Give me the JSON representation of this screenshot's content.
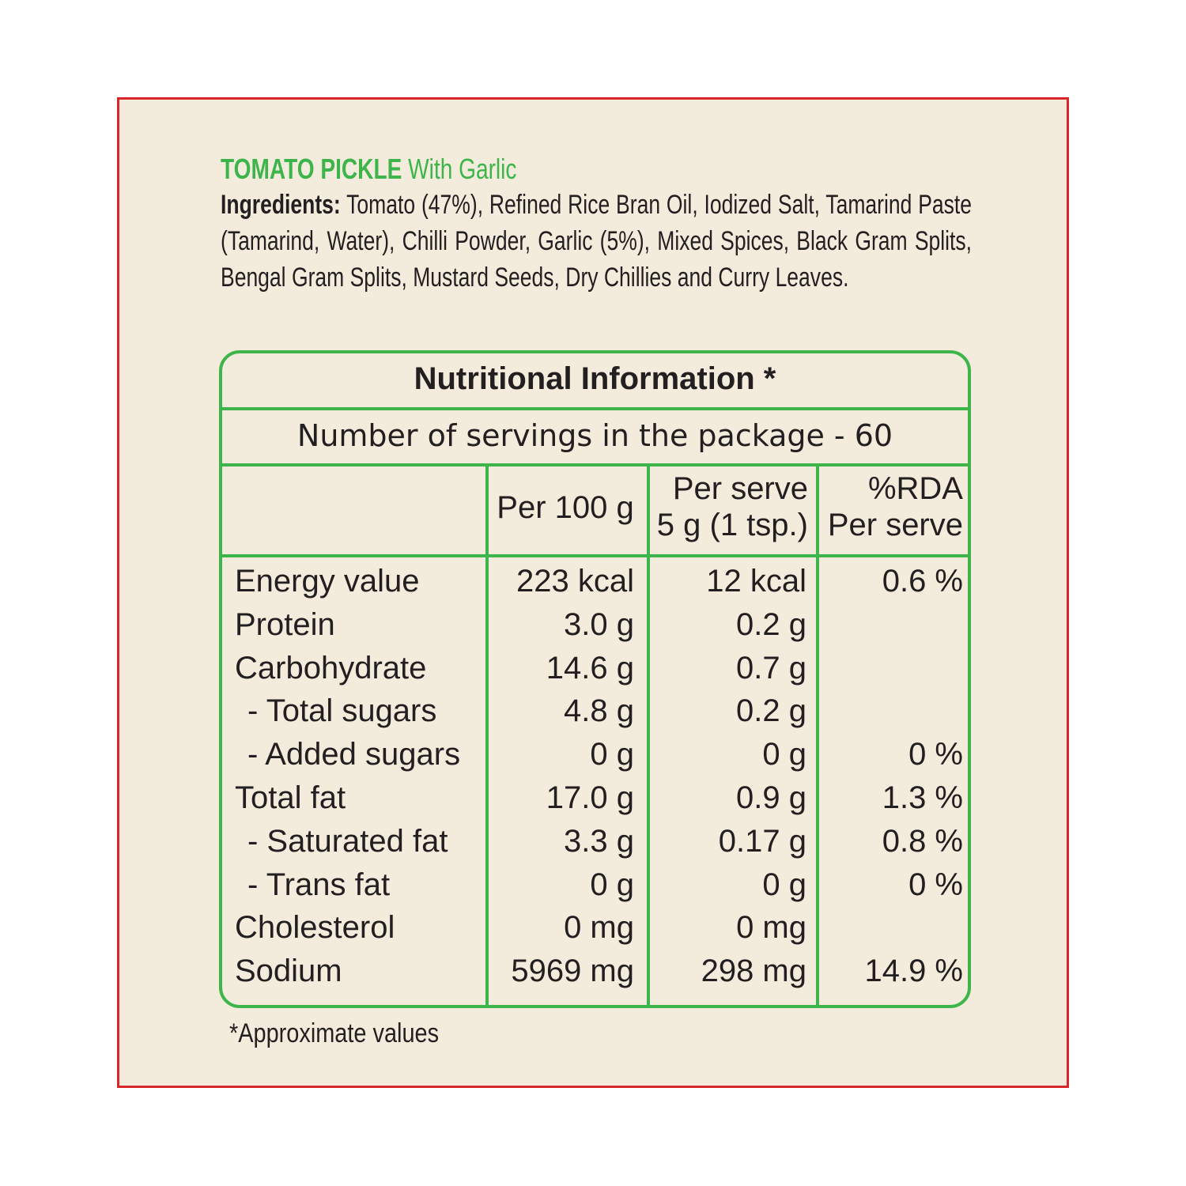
{
  "header": {
    "title": "TOMATO PICKLE",
    "subtitle": "With Garlic"
  },
  "ingredients": {
    "label": "Ingredients:",
    "text": "Tomato (47%), Refined Rice Bran Oil, Iodized Salt, Tamarind Paste (Tamarind, Water), Chilli Powder, Garlic (5%), Mixed Spices, Black Gram Splits, Bengal Gram Splits, Mustard Seeds, Dry Chillies and Curry Leaves."
  },
  "table": {
    "title": "Nutritional Information *",
    "servings": "Number of servings in the package - 60",
    "columns": [
      [
        "Per 100 g"
      ],
      [
        "Per serve",
        "5 g (1 tsp.)"
      ],
      [
        "%RDA",
        "Per serve"
      ]
    ],
    "rows": [
      [
        "Energy value",
        "223 kcal",
        "12 kcal",
        "0.6 %"
      ],
      [
        "Protein",
        "3.0 g",
        "0.2 g",
        null
      ],
      [
        "Carbohydrate",
        "14.6 g",
        "0.7 g",
        null
      ],
      [
        "- Total sugars",
        "4.8 g",
        "0.2 g",
        null
      ],
      [
        "- Added sugars",
        "0 g",
        "0 g",
        "0 %"
      ],
      [
        "Total fat",
        "17.0 g",
        "0.9 g",
        "1.3 %"
      ],
      [
        "- Saturated fat",
        "3.3 g",
        "0.17 g",
        "0.8 %"
      ],
      [
        "- Trans fat",
        "0 g",
        "0 g",
        "0 %"
      ],
      [
        "Cholesterol",
        "0 mg",
        "0 mg",
        null
      ],
      [
        "Sodium",
        "5969 mg",
        "298 mg",
        "14.9 %"
      ]
    ]
  },
  "footnote": "*Approximate values"
}
